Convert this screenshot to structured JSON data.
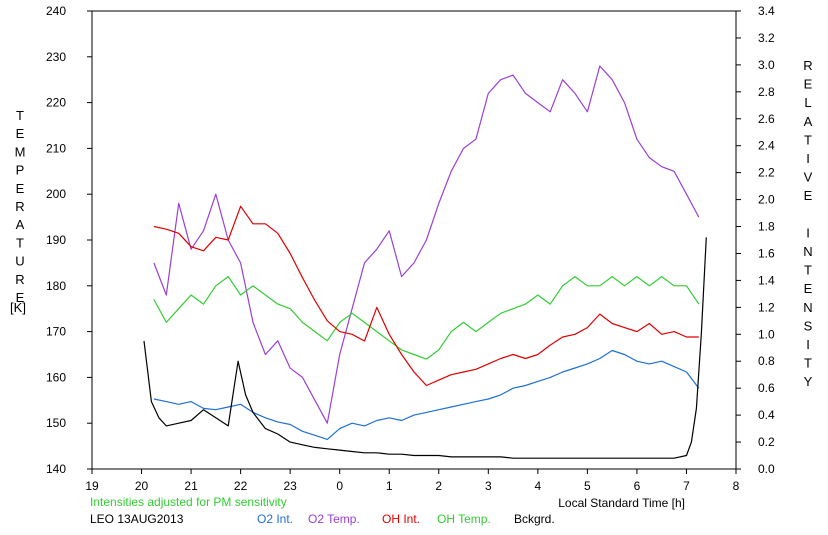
{
  "chart_data": {
    "type": "line",
    "left_axis_title": "TEMPERATURE",
    "left_axis_unit": "[K]",
    "right_axis_title": "RELATIVE INTENSITY",
    "xlabel": "Local Standard Time [h]",
    "note": "Intensities adjusted for PM sensitivity",
    "station_date": "LEO 13AUG2013",
    "ylim_left": [
      140,
      240
    ],
    "ylim_right": [
      0,
      3.4
    ],
    "x_ticks": [
      19,
      20,
      21,
      22,
      23,
      0,
      1,
      2,
      3,
      4,
      5,
      6,
      7,
      8
    ],
    "y_ticks_left": [
      140,
      150,
      160,
      170,
      180,
      190,
      200,
      210,
      220,
      230,
      240
    ],
    "y_ticks_right": [
      "0.0",
      "0.2",
      "0.4",
      "0.6",
      "0.8",
      "1.0",
      "1.2",
      "1.4",
      "1.6",
      "1.8",
      "2.0",
      "2.2",
      "2.4",
      "2.6",
      "2.8",
      "3.0",
      "3.2",
      "3.4"
    ],
    "legend": [
      {
        "key": "o2int",
        "label": "O2 Int.",
        "color": "#1f6fd6"
      },
      {
        "key": "o2temp",
        "label": "O2 Temp.",
        "color": "#9b3fd6"
      },
      {
        "key": "ohint",
        "label": "OH Int.",
        "color": "#e00000"
      },
      {
        "key": "ohtemp",
        "label": "OH Temp.",
        "color": "#33cc33"
      },
      {
        "key": "bckgrd",
        "label": "Bckgrd.",
        "color": "#000000"
      }
    ],
    "series": [
      {
        "key": "o2temp",
        "color": "#9b3fd6",
        "axis": "left",
        "x": [
          20.25,
          20.5,
          20.75,
          21,
          21.25,
          21.5,
          21.75,
          22,
          22.25,
          22.5,
          22.75,
          23,
          23.25,
          23.5,
          23.75,
          24,
          24.25,
          24.5,
          24.75,
          25,
          25.25,
          25.5,
          25.75,
          26,
          26.25,
          26.5,
          26.75,
          27,
          27.25,
          27.5,
          27.75,
          28,
          28.25,
          28.5,
          28.75,
          29,
          29.25,
          29.5,
          29.75,
          30,
          30.25,
          30.5,
          30.75,
          31,
          31.25
        ],
        "y": [
          185,
          178,
          198,
          188,
          192,
          200,
          190,
          185,
          172,
          165,
          168,
          162,
          160,
          155,
          150,
          165,
          175,
          185,
          188,
          192,
          182,
          185,
          190,
          198,
          205,
          210,
          212,
          222,
          225,
          226,
          222,
          220,
          218,
          225,
          222,
          218,
          228,
          225,
          220,
          212,
          208,
          206,
          205,
          200,
          195
        ]
      },
      {
        "key": "ohtemp",
        "color": "#33cc33",
        "axis": "left",
        "x": [
          20.25,
          20.5,
          20.75,
          21,
          21.25,
          21.5,
          21.75,
          22,
          22.25,
          22.5,
          22.75,
          23,
          23.25,
          23.5,
          23.75,
          24,
          24.25,
          24.5,
          24.75,
          25,
          25.25,
          25.5,
          25.75,
          26,
          26.25,
          26.5,
          26.75,
          27,
          27.25,
          27.5,
          27.75,
          28,
          28.25,
          28.5,
          28.75,
          29,
          29.25,
          29.5,
          29.75,
          30,
          30.25,
          30.5,
          30.75,
          31,
          31.25
        ],
        "y": [
          177,
          172,
          175,
          178,
          176,
          180,
          182,
          178,
          180,
          178,
          176,
          175,
          172,
          170,
          168,
          172,
          174,
          172,
          170,
          168,
          166,
          165,
          164,
          166,
          170,
          172,
          170,
          172,
          174,
          175,
          176,
          178,
          176,
          180,
          182,
          180,
          180,
          182,
          180,
          182,
          180,
          182,
          180,
          180,
          176
        ]
      },
      {
        "key": "ohint",
        "color": "#e00000",
        "axis": "right",
        "x": [
          20.25,
          20.5,
          20.75,
          21,
          21.25,
          21.5,
          21.75,
          22,
          22.25,
          22.5,
          22.75,
          23,
          23.25,
          23.5,
          23.75,
          24,
          24.25,
          24.5,
          24.75,
          25,
          25.25,
          25.5,
          25.75,
          26,
          26.25,
          26.5,
          26.75,
          27,
          27.25,
          27.5,
          27.75,
          28,
          28.25,
          28.5,
          28.75,
          29,
          29.25,
          29.5,
          29.75,
          30,
          30.25,
          30.5,
          30.75,
          31,
          31.25
        ],
        "y": [
          1.8,
          1.78,
          1.75,
          1.65,
          1.62,
          1.72,
          1.7,
          1.95,
          1.82,
          1.82,
          1.75,
          1.6,
          1.42,
          1.25,
          1.1,
          1.02,
          1.0,
          0.95,
          1.2,
          1.0,
          0.85,
          0.72,
          0.62,
          0.66,
          0.7,
          0.72,
          0.74,
          0.78,
          0.82,
          0.85,
          0.82,
          0.85,
          0.92,
          0.98,
          1.0,
          1.05,
          1.15,
          1.08,
          1.05,
          1.02,
          1.08,
          1.0,
          1.02,
          0.98,
          0.98
        ]
      },
      {
        "key": "o2int",
        "color": "#1f6fd6",
        "axis": "right",
        "x": [
          20.25,
          20.5,
          20.75,
          21,
          21.25,
          21.5,
          21.75,
          22,
          22.25,
          22.5,
          22.75,
          23,
          23.25,
          23.5,
          23.75,
          24,
          24.25,
          24.5,
          24.75,
          25,
          25.25,
          25.5,
          25.75,
          26,
          26.25,
          26.5,
          26.75,
          27,
          27.25,
          27.5,
          27.75,
          28,
          28.25,
          28.5,
          28.75,
          29,
          29.25,
          29.5,
          29.75,
          30,
          30.25,
          30.5,
          30.75,
          31,
          31.25
        ],
        "y": [
          0.52,
          0.5,
          0.48,
          0.5,
          0.45,
          0.44,
          0.46,
          0.48,
          0.42,
          0.38,
          0.35,
          0.33,
          0.28,
          0.25,
          0.22,
          0.3,
          0.34,
          0.32,
          0.36,
          0.38,
          0.36,
          0.4,
          0.42,
          0.44,
          0.46,
          0.48,
          0.5,
          0.52,
          0.55,
          0.6,
          0.62,
          0.65,
          0.68,
          0.72,
          0.75,
          0.78,
          0.82,
          0.88,
          0.85,
          0.8,
          0.78,
          0.8,
          0.76,
          0.72,
          0.6
        ]
      },
      {
        "key": "bckgrd",
        "color": "#000000",
        "axis": "right",
        "x": [
          20.05,
          20.2,
          20.35,
          20.5,
          20.75,
          21,
          21.25,
          21.5,
          21.75,
          21.95,
          22.1,
          22.25,
          22.5,
          22.75,
          23,
          23.25,
          23.5,
          23.75,
          24,
          24.25,
          24.5,
          24.75,
          25,
          25.25,
          25.5,
          25.75,
          26,
          26.25,
          26.5,
          26.75,
          27,
          27.25,
          27.5,
          27.75,
          28,
          28.25,
          28.5,
          28.75,
          29,
          29.25,
          29.5,
          29.75,
          30,
          30.25,
          30.5,
          30.75,
          31,
          31.1,
          31.2,
          31.3,
          31.4
        ],
        "y": [
          0.95,
          0.5,
          0.38,
          0.32,
          0.34,
          0.36,
          0.44,
          0.38,
          0.32,
          0.8,
          0.55,
          0.42,
          0.3,
          0.26,
          0.2,
          0.18,
          0.16,
          0.15,
          0.14,
          0.13,
          0.12,
          0.12,
          0.11,
          0.11,
          0.1,
          0.1,
          0.1,
          0.09,
          0.09,
          0.09,
          0.09,
          0.09,
          0.08,
          0.08,
          0.08,
          0.08,
          0.08,
          0.08,
          0.08,
          0.08,
          0.08,
          0.08,
          0.08,
          0.08,
          0.08,
          0.08,
          0.1,
          0.2,
          0.45,
          1.0,
          1.72
        ]
      }
    ]
  }
}
